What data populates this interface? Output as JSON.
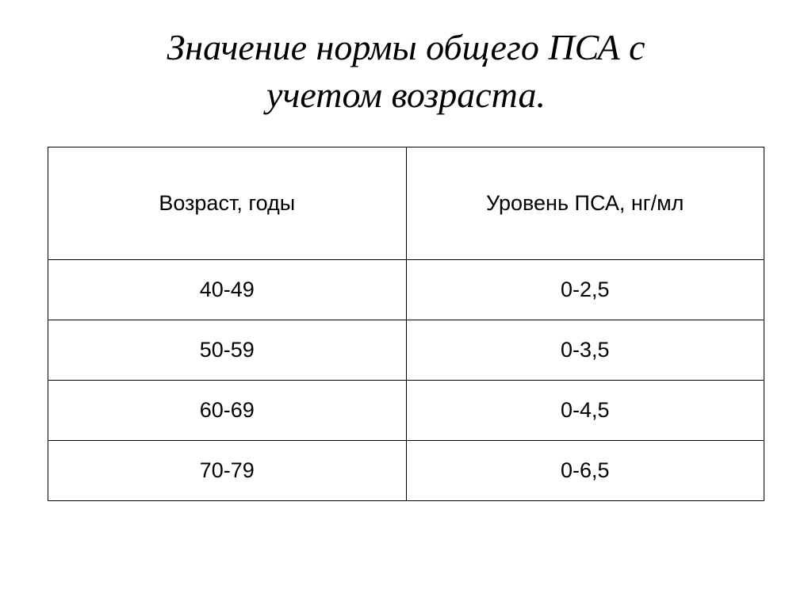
{
  "title_line1": "Значение нормы общего ПСА с",
  "title_line2": "учетом возраста.",
  "table": {
    "columns": [
      "Возраст, годы",
      "Уровень ПСА, нг/мл"
    ],
    "rows": [
      [
        "40-49",
        "0-2,5"
      ],
      [
        "50-59",
        "0-3,5"
      ],
      [
        "60-69",
        "0-4,5"
      ],
      [
        "70-79",
        "0-6,5"
      ]
    ]
  },
  "styling": {
    "background_color": "#ffffff",
    "text_color": "#000000",
    "border_color": "#000000",
    "title_fontsize": 46,
    "title_style": "italic",
    "cell_fontsize": 27,
    "header_padding_v": 55,
    "row_padding_v": 22,
    "col_widths_pct": [
      50,
      50
    ]
  }
}
